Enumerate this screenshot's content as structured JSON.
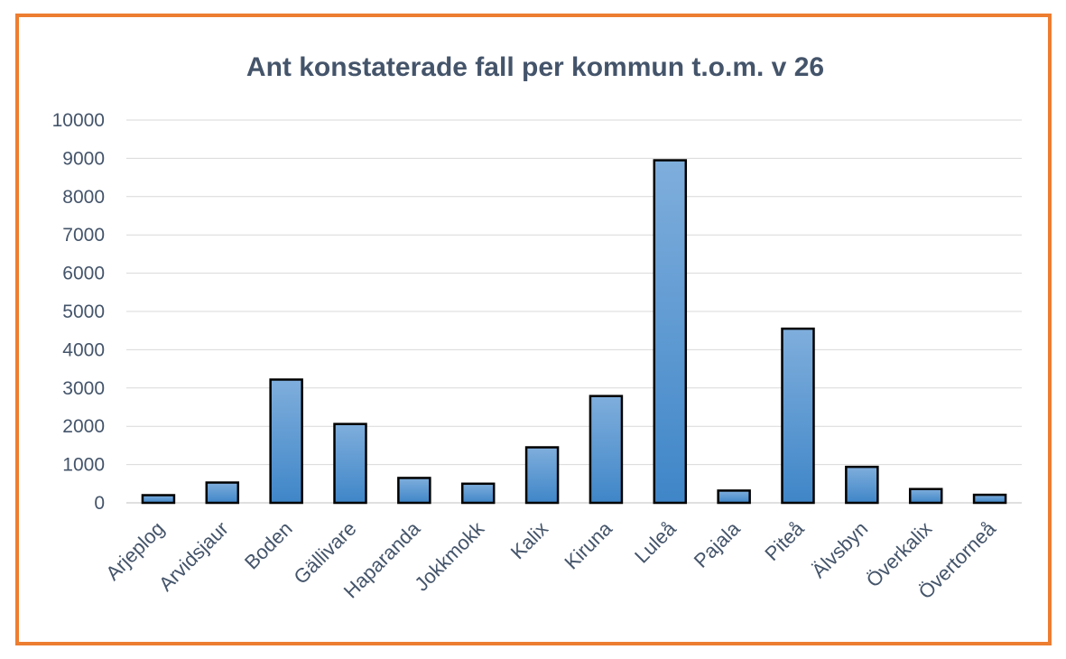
{
  "chart_data": {
    "type": "bar",
    "title": "Ant konstaterade fall per kommun t.o.m. v 26",
    "xlabel": "",
    "ylabel": "",
    "categories": [
      "Arjeplog",
      "Arvidsjaur",
      "Boden",
      "Gällivare",
      "Haparanda",
      "Jokkmokk",
      "Kalix",
      "Kiruna",
      "Luleå",
      "Pajala",
      "Piteå",
      "Älvsbyn",
      "Överkalix",
      "Övertorneå"
    ],
    "values": [
      200,
      530,
      3220,
      2060,
      650,
      500,
      1450,
      2790,
      8950,
      320,
      4550,
      940,
      360,
      210
    ],
    "ylim": [
      0,
      10000
    ],
    "yticks": [
      0,
      1000,
      2000,
      3000,
      4000,
      5000,
      6000,
      7000,
      8000,
      9000,
      10000
    ],
    "grid": true,
    "legend": "none",
    "colors": {
      "bar_top": "#7FAEDC",
      "bar_bottom": "#3F86C8",
      "bar_outline": "#000000",
      "gridline": "#D9D9D9",
      "frame": "#ED7D31",
      "text": "#44546A"
    }
  }
}
